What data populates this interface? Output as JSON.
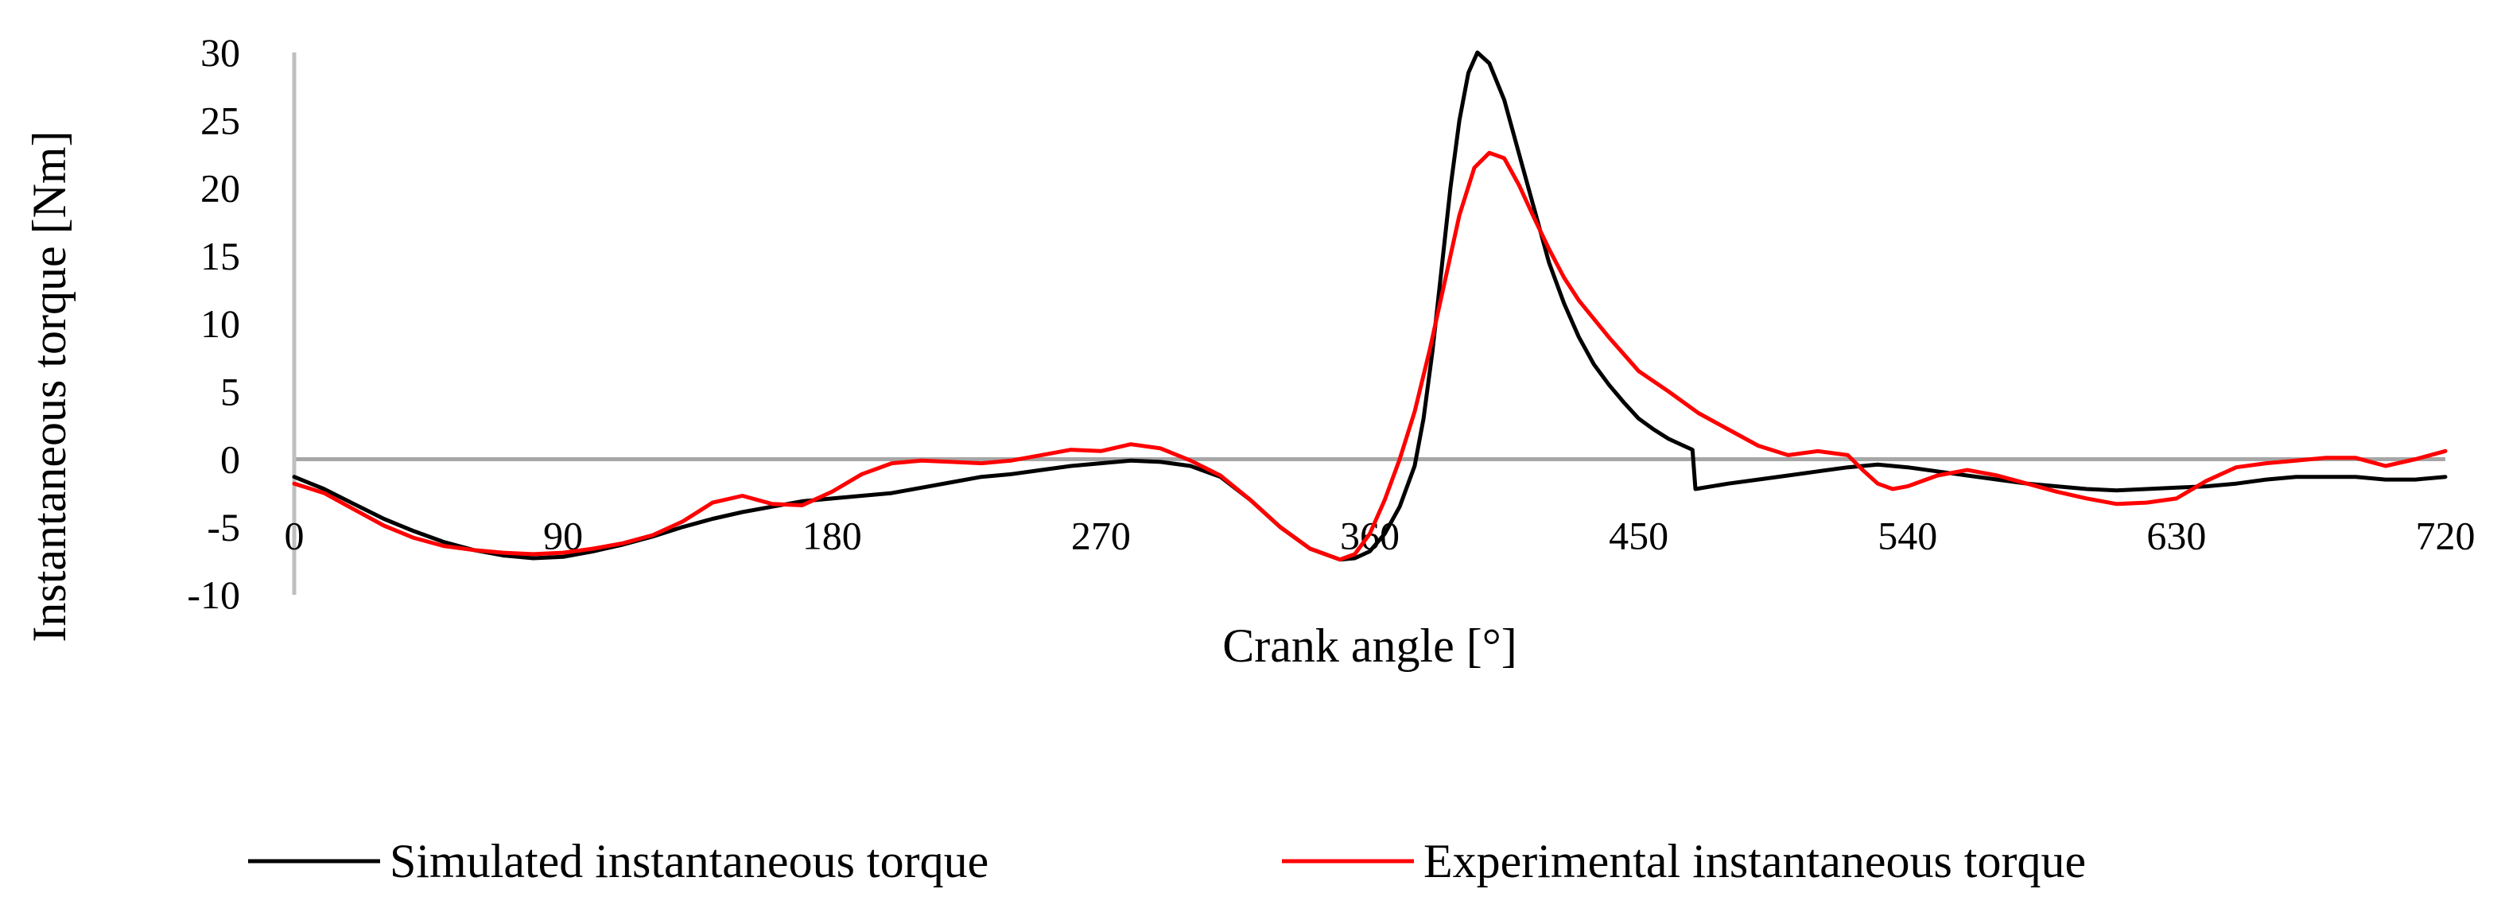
{
  "chart_data": {
    "type": "line",
    "title": "",
    "xlabel": "Crank angle [°]",
    "ylabel": "Instantaneous  torque  [Nm]",
    "xlim": [
      0,
      720
    ],
    "ylim": [
      -10,
      30
    ],
    "x_ticks": [
      0,
      90,
      180,
      270,
      360,
      450,
      540,
      630,
      720
    ],
    "y_ticks": [
      -10,
      -5,
      0,
      5,
      10,
      15,
      20,
      25,
      30
    ],
    "grid": false,
    "legend_position": "bottom",
    "series": [
      {
        "name": "Simulated instantaneous torque",
        "color": "#000000",
        "points": [
          [
            0,
            -1.3
          ],
          [
            10,
            -2.2
          ],
          [
            20,
            -3.3
          ],
          [
            30,
            -4.4
          ],
          [
            40,
            -5.3
          ],
          [
            50,
            -6.1
          ],
          [
            60,
            -6.7
          ],
          [
            70,
            -7.1
          ],
          [
            80,
            -7.3
          ],
          [
            90,
            -7.2
          ],
          [
            100,
            -6.8
          ],
          [
            110,
            -6.3
          ],
          [
            120,
            -5.7
          ],
          [
            130,
            -5.0
          ],
          [
            140,
            -4.4
          ],
          [
            150,
            -3.9
          ],
          [
            160,
            -3.5
          ],
          [
            170,
            -3.1
          ],
          [
            180,
            -2.9
          ],
          [
            190,
            -2.7
          ],
          [
            200,
            -2.5
          ],
          [
            210,
            -2.1
          ],
          [
            220,
            -1.7
          ],
          [
            230,
            -1.3
          ],
          [
            240,
            -1.1
          ],
          [
            250,
            -0.8
          ],
          [
            260,
            -0.5
          ],
          [
            270,
            -0.3
          ],
          [
            280,
            -0.1
          ],
          [
            290,
            -0.2
          ],
          [
            300,
            -0.5
          ],
          [
            310,
            -1.3
          ],
          [
            320,
            -3.0
          ],
          [
            330,
            -5.0
          ],
          [
            340,
            -6.6
          ],
          [
            350,
            -7.4
          ],
          [
            355,
            -7.3
          ],
          [
            360,
            -6.8
          ],
          [
            365,
            -5.5
          ],
          [
            370,
            -3.5
          ],
          [
            375,
            -0.5
          ],
          [
            378,
            3.0
          ],
          [
            381,
            8.0
          ],
          [
            384,
            14.0
          ],
          [
            387,
            20.0
          ],
          [
            390,
            25.0
          ],
          [
            393,
            28.5
          ],
          [
            396,
            30.0
          ],
          [
            400,
            29.2
          ],
          [
            405,
            26.5
          ],
          [
            410,
            22.5
          ],
          [
            415,
            18.5
          ],
          [
            420,
            14.5
          ],
          [
            425,
            11.5
          ],
          [
            430,
            9.0
          ],
          [
            435,
            7.0
          ],
          [
            440,
            5.5
          ],
          [
            445,
            4.2
          ],
          [
            450,
            3.0
          ],
          [
            455,
            2.2
          ],
          [
            460,
            1.5
          ],
          [
            465,
            1.0
          ],
          [
            468,
            0.7
          ],
          [
            469,
            -2.2
          ],
          [
            480,
            -1.8
          ],
          [
            490,
            -1.5
          ],
          [
            500,
            -1.2
          ],
          [
            510,
            -0.9
          ],
          [
            520,
            -0.6
          ],
          [
            530,
            -0.4
          ],
          [
            540,
            -0.6
          ],
          [
            550,
            -0.9
          ],
          [
            560,
            -1.2
          ],
          [
            570,
            -1.5
          ],
          [
            580,
            -1.8
          ],
          [
            590,
            -2.0
          ],
          [
            600,
            -2.2
          ],
          [
            610,
            -2.3
          ],
          [
            620,
            -2.2
          ],
          [
            630,
            -2.1
          ],
          [
            640,
            -2.0
          ],
          [
            650,
            -1.8
          ],
          [
            660,
            -1.5
          ],
          [
            670,
            -1.3
          ],
          [
            680,
            -1.3
          ],
          [
            690,
            -1.3
          ],
          [
            700,
            -1.5
          ],
          [
            710,
            -1.5
          ],
          [
            720,
            -1.3
          ]
        ]
      },
      {
        "name": "Experimental instantaneous torque",
        "color": "#ff0000",
        "points": [
          [
            0,
            -1.8
          ],
          [
            10,
            -2.5
          ],
          [
            20,
            -3.7
          ],
          [
            30,
            -4.9
          ],
          [
            40,
            -5.8
          ],
          [
            50,
            -6.4
          ],
          [
            60,
            -6.7
          ],
          [
            70,
            -6.9
          ],
          [
            80,
            -7.0
          ],
          [
            90,
            -6.9
          ],
          [
            100,
            -6.6
          ],
          [
            110,
            -6.2
          ],
          [
            120,
            -5.6
          ],
          [
            130,
            -4.6
          ],
          [
            140,
            -3.2
          ],
          [
            150,
            -2.7
          ],
          [
            160,
            -3.3
          ],
          [
            170,
            -3.4
          ],
          [
            180,
            -2.4
          ],
          [
            190,
            -1.1
          ],
          [
            200,
            -0.3
          ],
          [
            210,
            -0.1
          ],
          [
            220,
            -0.2
          ],
          [
            230,
            -0.3
          ],
          [
            240,
            -0.1
          ],
          [
            250,
            0.3
          ],
          [
            260,
            0.7
          ],
          [
            270,
            0.6
          ],
          [
            280,
            1.1
          ],
          [
            290,
            0.8
          ],
          [
            300,
            -0.1
          ],
          [
            310,
            -1.2
          ],
          [
            320,
            -3.0
          ],
          [
            330,
            -5.0
          ],
          [
            340,
            -6.6
          ],
          [
            350,
            -7.4
          ],
          [
            355,
            -7.0
          ],
          [
            360,
            -5.5
          ],
          [
            365,
            -3.0
          ],
          [
            370,
            0.0
          ],
          [
            375,
            3.5
          ],
          [
            380,
            8.0
          ],
          [
            385,
            13.0
          ],
          [
            390,
            18.0
          ],
          [
            395,
            21.5
          ],
          [
            400,
            22.6
          ],
          [
            405,
            22.2
          ],
          [
            410,
            20.2
          ],
          [
            415,
            17.8
          ],
          [
            420,
            15.5
          ],
          [
            425,
            13.4
          ],
          [
            430,
            11.7
          ],
          [
            440,
            9.0
          ],
          [
            450,
            6.5
          ],
          [
            460,
            5.0
          ],
          [
            470,
            3.4
          ],
          [
            480,
            2.2
          ],
          [
            490,
            1.0
          ],
          [
            500,
            0.3
          ],
          [
            510,
            0.6
          ],
          [
            520,
            0.3
          ],
          [
            525,
            -0.8
          ],
          [
            530,
            -1.8
          ],
          [
            535,
            -2.2
          ],
          [
            540,
            -2.0
          ],
          [
            550,
            -1.2
          ],
          [
            560,
            -0.8
          ],
          [
            570,
            -1.2
          ],
          [
            580,
            -1.8
          ],
          [
            590,
            -2.4
          ],
          [
            600,
            -2.9
          ],
          [
            610,
            -3.3
          ],
          [
            620,
            -3.2
          ],
          [
            630,
            -2.9
          ],
          [
            640,
            -1.6
          ],
          [
            650,
            -0.6
          ],
          [
            660,
            -0.3
          ],
          [
            670,
            -0.1
          ],
          [
            680,
            0.1
          ],
          [
            690,
            0.1
          ],
          [
            695,
            -0.2
          ],
          [
            700,
            -0.5
          ],
          [
            710,
            0.0
          ],
          [
            720,
            0.6
          ]
        ]
      }
    ]
  }
}
